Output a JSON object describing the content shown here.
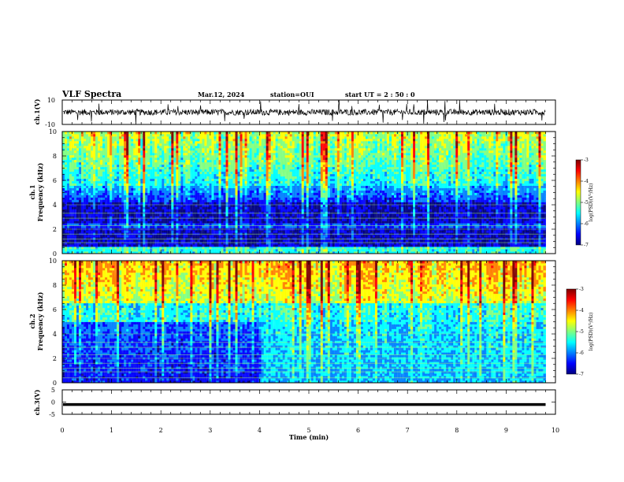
{
  "header": {
    "title": "VLF Spectra",
    "date": "Mar.12, 2024",
    "station": "station=OUI",
    "start": "start  UT  =   2 : 50 : 0"
  },
  "colors": {
    "scale": [
      "#00007f",
      "#0000ff",
      "#0080ff",
      "#00ffff",
      "#80ff80",
      "#ffff00",
      "#ff8000",
      "#ff0000",
      "#7f0000"
    ],
    "ch3_line": "#000000"
  },
  "chart_data": [
    {
      "type": "line",
      "name": "ch1-waveform",
      "ylabel": "ch.1(V)",
      "ylim": [
        -10,
        10
      ],
      "y_ticks": [
        "10",
        "-10"
      ],
      "baseline": 0,
      "xlim": [
        0,
        10
      ],
      "data_end": 9.8
    },
    {
      "type": "heatmap",
      "name": "ch1-spectrogram",
      "ylabel_top": "ch.1",
      "ylabel": "Frequency  (kHz)",
      "ylim": [
        0,
        10
      ],
      "y_ticks": [
        "0",
        "2",
        "4",
        "6",
        "8",
        "10"
      ],
      "xlim": [
        0,
        10
      ],
      "data_end": 9.8,
      "colorbar": {
        "label": "log(PSD)(V²/Hz)",
        "range": [
          -7,
          -3
        ],
        "ticks": [
          "-3",
          "-4",
          "-5",
          "-6",
          "-7"
        ]
      }
    },
    {
      "type": "heatmap",
      "name": "ch2-spectrogram",
      "ylabel_top": "ch.2",
      "ylabel": "Frequency  (kHz)",
      "ylim": [
        0,
        10
      ],
      "y_ticks": [
        "0",
        "2",
        "4",
        "6",
        "8",
        "10"
      ],
      "xlim": [
        0,
        10
      ],
      "data_end": 9.8,
      "colorbar": {
        "label": "log(PSD)(V²/Hz)",
        "range": [
          -7,
          -3
        ],
        "ticks": [
          "-3",
          "-4",
          "-5",
          "-6",
          "-7"
        ]
      }
    },
    {
      "type": "line",
      "name": "ch3-waveform",
      "ylabel": "ch.3(V)",
      "ylim": [
        -5,
        5
      ],
      "y_ticks": [
        "5",
        "0",
        "-5"
      ],
      "baseline": -1,
      "xlim": [
        0,
        10
      ],
      "data_end": 9.8,
      "xlabel": "Time  (min)",
      "x_ticks": [
        "0",
        "1",
        "2",
        "3",
        "4",
        "5",
        "6",
        "7",
        "8",
        "9",
        "10"
      ]
    }
  ]
}
